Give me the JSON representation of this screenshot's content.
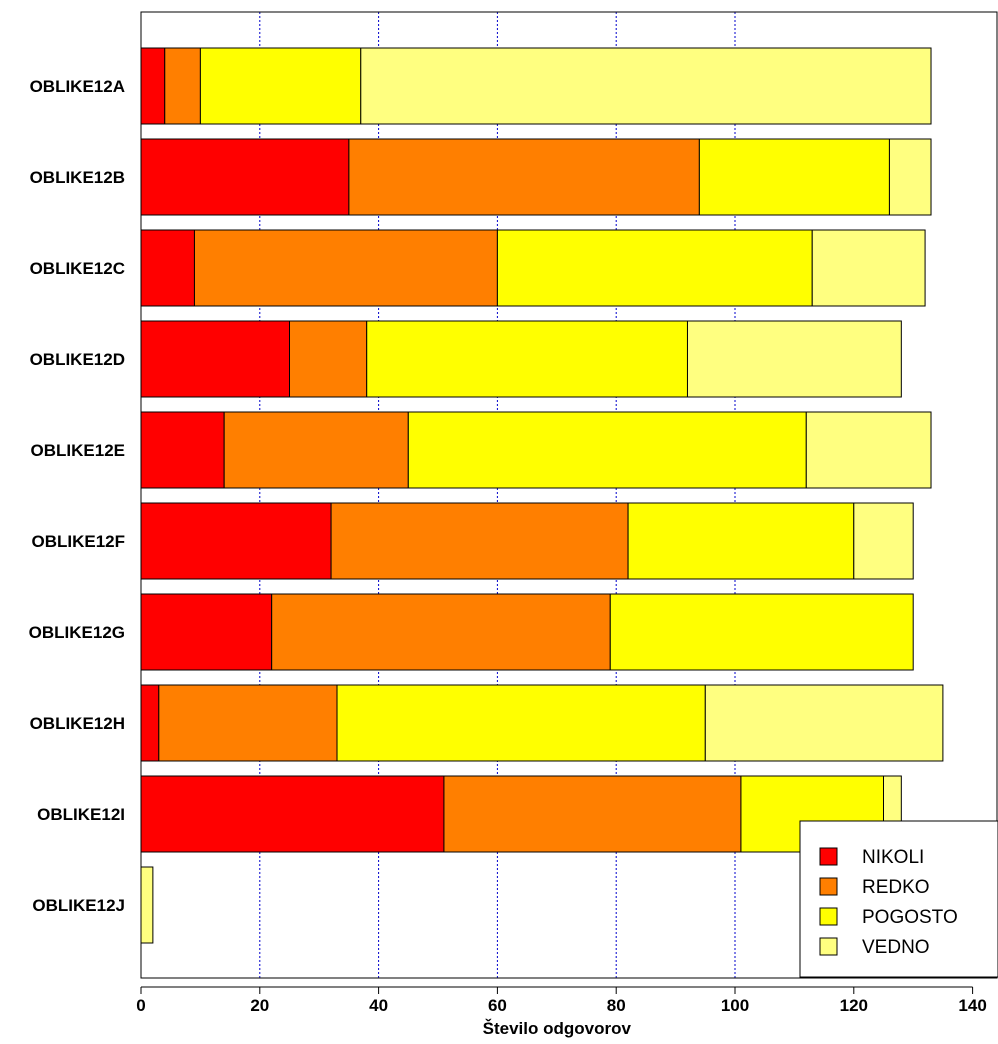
{
  "chart_data": {
    "type": "bar",
    "orientation": "horizontal",
    "stacked": true,
    "title": "",
    "xlabel": "Število odgovorov",
    "ylabel": "",
    "xlim": [
      0,
      145
    ],
    "xticks": [
      0,
      20,
      40,
      60,
      80,
      100,
      120,
      140
    ],
    "grid": "vertical dotted lines at 20, 40, 60, 80, 100",
    "legend_position": "bottom-right",
    "categories": [
      "OBLIKE12A",
      "OBLIKE12B",
      "OBLIKE12C",
      "OBLIKE12D",
      "OBLIKE12E",
      "OBLIKE12F",
      "OBLIKE12G",
      "OBLIKE12H",
      "OBLIKE12I",
      "OBLIKE12J"
    ],
    "series": [
      {
        "name": "NIKOLI",
        "color": "#ff0000",
        "values": [
          4,
          35,
          9,
          25,
          14,
          32,
          22,
          3,
          51,
          0
        ]
      },
      {
        "name": "REDKO",
        "color": "#ff7f00",
        "values": [
          6,
          59,
          51,
          13,
          31,
          50,
          57,
          30,
          50,
          0
        ]
      },
      {
        "name": "POGOSTO",
        "color": "#ffff00",
        "values": [
          27,
          32,
          53,
          54,
          67,
          38,
          51,
          62,
          24,
          0
        ]
      },
      {
        "name": "VEDNO",
        "color": "#ffff80",
        "values": [
          96,
          7,
          19,
          36,
          21,
          10,
          0,
          40,
          3,
          2
        ]
      }
    ]
  }
}
